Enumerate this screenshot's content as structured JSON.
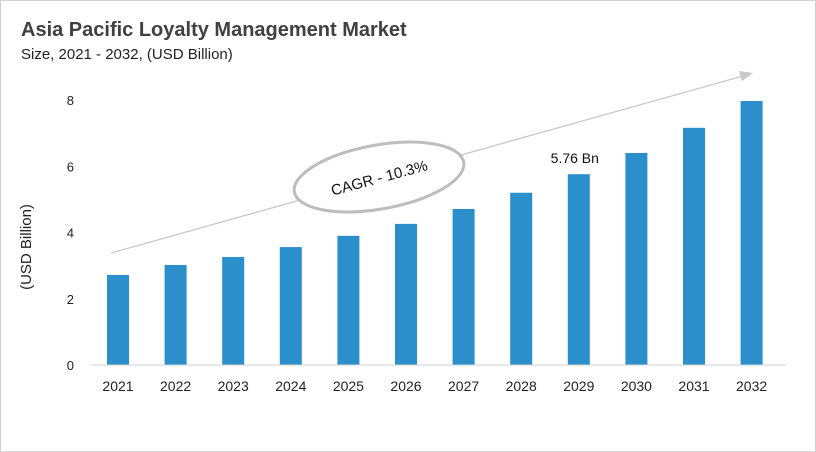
{
  "chart_data": {
    "type": "bar",
    "title": "Asia Pacific Loyalty Management Market",
    "subtitle": "Size, 2021 - 2032, (USD Billion)",
    "xlabel": "",
    "ylabel": "(USD Billion)",
    "ylim": [
      0,
      8
    ],
    "yticks": [
      0,
      2,
      4,
      6,
      8
    ],
    "categories": [
      "2021",
      "2022",
      "2023",
      "2024",
      "2025",
      "2026",
      "2027",
      "2028",
      "2029",
      "2030",
      "2031",
      "2032"
    ],
    "values": [
      2.72,
      3.02,
      3.26,
      3.56,
      3.9,
      4.26,
      4.71,
      5.2,
      5.76,
      6.4,
      7.16,
      7.97
    ],
    "data_labels": [
      {
        "category": "2029",
        "text": "5.76 Bn"
      }
    ],
    "annotation": "CAGR - 10.3%",
    "bar_color": "#2b8fcc",
    "grid": false,
    "legend": "none"
  }
}
